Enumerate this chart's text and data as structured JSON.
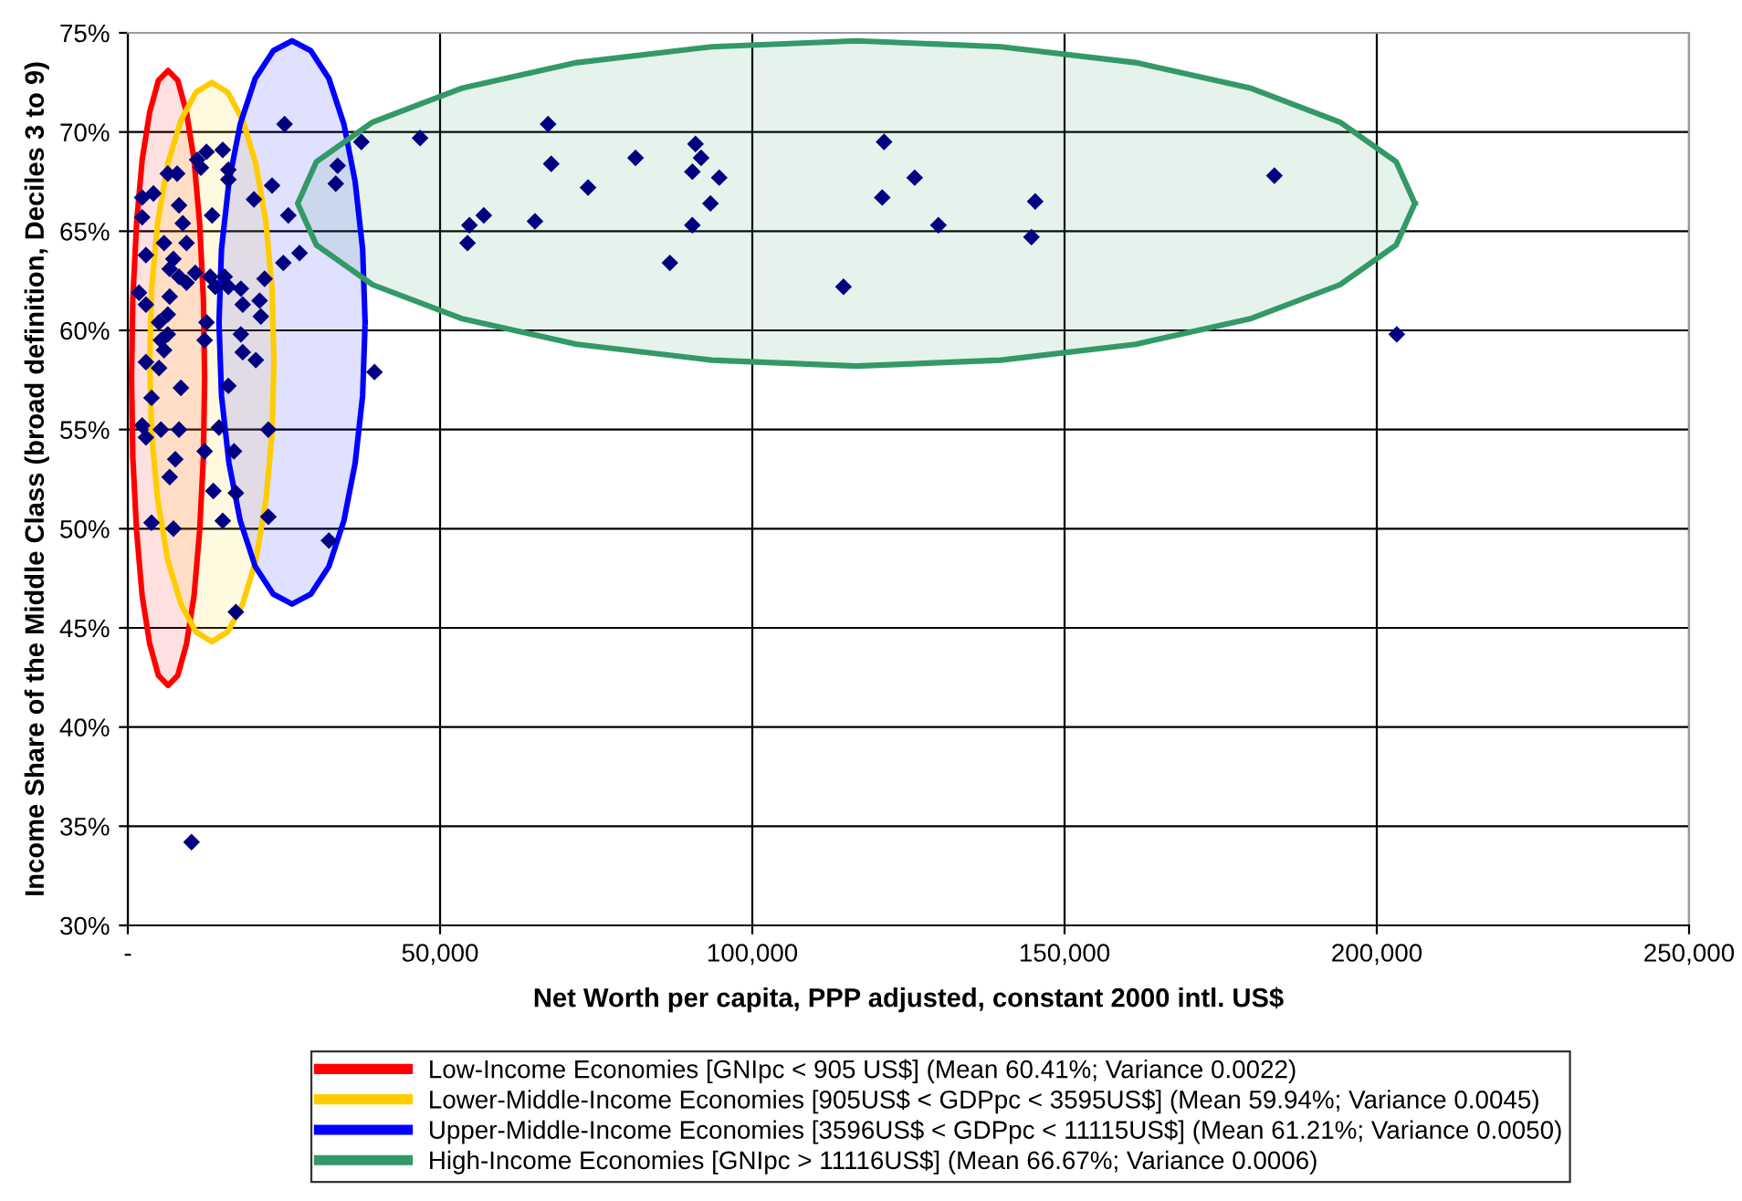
{
  "chart_data": {
    "type": "scatter",
    "xlabel": "Net Worth per capita, PPP adjusted, constant 2000 intl. US$",
    "ylabel": "Income Share of the Middle Class (broad definition, Deciles 3 to 9)",
    "xlim": [
      0,
      250000
    ],
    "xticks": [
      {
        "value": 0,
        "label": "-"
      },
      {
        "value": 50000,
        "label": "50,000"
      },
      {
        "value": 100000,
        "label": "100,000"
      },
      {
        "value": 150000,
        "label": "150,000"
      },
      {
        "value": 200000,
        "label": "200,000"
      },
      {
        "value": 250000,
        "label": "250,000"
      }
    ],
    "ylim": [
      30,
      75
    ],
    "yticks": [
      {
        "value": 30,
        "label": "30%"
      },
      {
        "value": 35,
        "label": "35%"
      },
      {
        "value": 40,
        "label": "40%"
      },
      {
        "value": 45,
        "label": "45%"
      },
      {
        "value": 50,
        "label": "50%"
      },
      {
        "value": 55,
        "label": "55%"
      },
      {
        "value": 60,
        "label": "60%"
      },
      {
        "value": 65,
        "label": "65%"
      },
      {
        "value": 70,
        "label": "70%"
      },
      {
        "value": 75,
        "label": "75%"
      }
    ],
    "grid": true,
    "legend": "bottom",
    "series": [
      {
        "name": "Low-Income Economies [GNIpc < 905 US$] (Mean 60.41%; Variance 0.0022)",
        "type": "area",
        "color": "#ff0000",
        "x": [
          12300,
          12100,
          11500,
          10600,
          9400,
          8000,
          6450,
          4900,
          3500,
          2300,
          1400,
          800,
          600,
          800,
          1400,
          2300,
          3500,
          4900,
          6450,
          8000,
          9400,
          10600,
          11500,
          12100
        ],
        "values": [
          57.6,
          61.6,
          65.4,
          68.6,
          71.0,
          72.6,
          73.1,
          72.6,
          71.0,
          68.6,
          65.4,
          61.6,
          57.6,
          53.6,
          49.9,
          46.6,
          44.2,
          42.6,
          42.1,
          42.6,
          44.2,
          46.6,
          49.9,
          53.6
        ]
      },
      {
        "name": "Lower-Middle-Income Economies [905US$ < GDPpc < 3595US$] (Mean 59.94%; Variance 0.0045)",
        "type": "area",
        "color": "#ffcc00",
        "x": [
          23400,
          23100,
          22100,
          20500,
          18400,
          16000,
          13450,
          10900,
          8500,
          6400,
          4800,
          3800,
          3500,
          3800,
          4800,
          6400,
          8500,
          10900,
          13450,
          16000,
          18400,
          20500,
          22100,
          23100
        ],
        "values": [
          58.4,
          62.1,
          65.5,
          68.4,
          70.6,
          72.0,
          72.5,
          72.0,
          70.6,
          68.4,
          65.5,
          62.1,
          58.4,
          54.8,
          51.4,
          48.4,
          46.2,
          44.8,
          44.3,
          44.8,
          46.2,
          48.4,
          51.4,
          54.8
        ]
      },
      {
        "name": "Upper-Middle-Income Economies [3596US$ < GDPpc < 11115US$] (Mean 61.21%; Variance 0.0050)",
        "type": "area",
        "color": "#0000ff",
        "x": [
          38000,
          37600,
          36400,
          34600,
          32200,
          29300,
          26300,
          23300,
          20400,
          18000,
          16200,
          15000,
          14600,
          15000,
          16200,
          18000,
          20400,
          23300,
          26300,
          29300,
          32200,
          34600,
          36400,
          37600
        ],
        "values": [
          60.4,
          64.1,
          67.5,
          70.4,
          72.7,
          74.1,
          74.6,
          74.1,
          72.7,
          70.4,
          67.5,
          64.1,
          60.4,
          56.7,
          53.3,
          50.4,
          48.1,
          46.7,
          46.2,
          46.7,
          48.1,
          50.4,
          53.3,
          56.7
        ]
      },
      {
        "name": "High-Income Economies [GNIpc > 11116US$] (Mean 66.67%; Variance 0.0006)",
        "type": "area",
        "color": "#339966",
        "x": [
          206100,
          203100,
          194100,
          179900,
          161400,
          139800,
          116700,
          93500,
          71900,
          53400,
          39200,
          30200,
          27200,
          30200,
          39200,
          53400,
          71900,
          93500,
          116700,
          139800,
          161400,
          179900,
          194100,
          203100
        ],
        "values": [
          66.4,
          68.5,
          70.5,
          72.2,
          73.5,
          74.3,
          74.6,
          74.3,
          73.5,
          72.2,
          70.5,
          68.5,
          66.4,
          64.3,
          62.3,
          60.6,
          59.3,
          58.5,
          58.2,
          58.5,
          59.3,
          60.6,
          62.3,
          64.3
        ]
      },
      {
        "color": "#000080",
        "marker": "diamond",
        "x": [
          46800,
          67300,
          67800,
          81300,
          73700,
          54700,
          57000,
          54400,
          65200,
          86800,
          90900,
          91800,
          90400,
          94700,
          93300,
          90400,
          121100,
          126000,
          120800,
          129800,
          114600,
          145300,
          144700,
          183600,
          203200,
          25100,
          37400,
          33600,
          33300,
          23100,
          25700,
          27500,
          24900,
          39500,
          32200,
          22500,
          22500,
          17300,
          2300,
          4100,
          2300,
          1800,
          2900,
          5800,
          8200,
          6400,
          7900,
          8800,
          9400,
          7300,
          6700,
          8200,
          6700,
          9400,
          2900,
          6400,
          5000,
          6400,
          5300,
          5800,
          2900,
          5000,
          12600,
          11100,
          11700,
          15200,
          16100,
          13500,
          20200,
          16100,
          10800,
          13200,
          14000,
          15500,
          16100,
          18100,
          21900,
          18400,
          21100,
          21300,
          12600,
          12300,
          18100,
          18400,
          20500,
          3800,
          2300,
          2900,
          5300,
          8200,
          8500,
          7600,
          6700,
          3800,
          7300,
          14600,
          12300,
          17000,
          13700,
          17300,
          15200,
          16100,
          10200
        ],
        "values": [
          69.7,
          70.4,
          68.4,
          68.7,
          67.2,
          65.3,
          65.8,
          64.4,
          65.5,
          63.4,
          69.4,
          68.7,
          68.0,
          67.7,
          66.4,
          65.3,
          69.5,
          67.7,
          66.7,
          65.3,
          62.2,
          66.5,
          64.7,
          67.8,
          59.8,
          70.4,
          69.5,
          68.3,
          67.4,
          67.3,
          65.8,
          63.9,
          63.4,
          57.9,
          49.4,
          55.0,
          50.6,
          45.8,
          66.7,
          66.9,
          65.7,
          61.9,
          63.8,
          64.4,
          66.3,
          67.9,
          67.9,
          65.4,
          64.4,
          63.6,
          63.1,
          62.7,
          61.7,
          62.4,
          61.3,
          60.8,
          60.4,
          59.8,
          59.5,
          59.0,
          58.4,
          58.1,
          69.0,
          68.6,
          68.2,
          69.1,
          68.1,
          65.8,
          66.6,
          67.6,
          62.9,
          62.7,
          62.2,
          62.7,
          62.2,
          62.1,
          62.6,
          61.3,
          61.5,
          60.7,
          60.4,
          59.5,
          59.8,
          58.9,
          58.5,
          56.6,
          55.2,
          54.6,
          55.0,
          55.0,
          57.1,
          53.5,
          52.6,
          50.3,
          50.0,
          55.1,
          53.9,
          53.9,
          51.9,
          51.8,
          50.4,
          57.2,
          34.2
        ]
      }
    ]
  }
}
